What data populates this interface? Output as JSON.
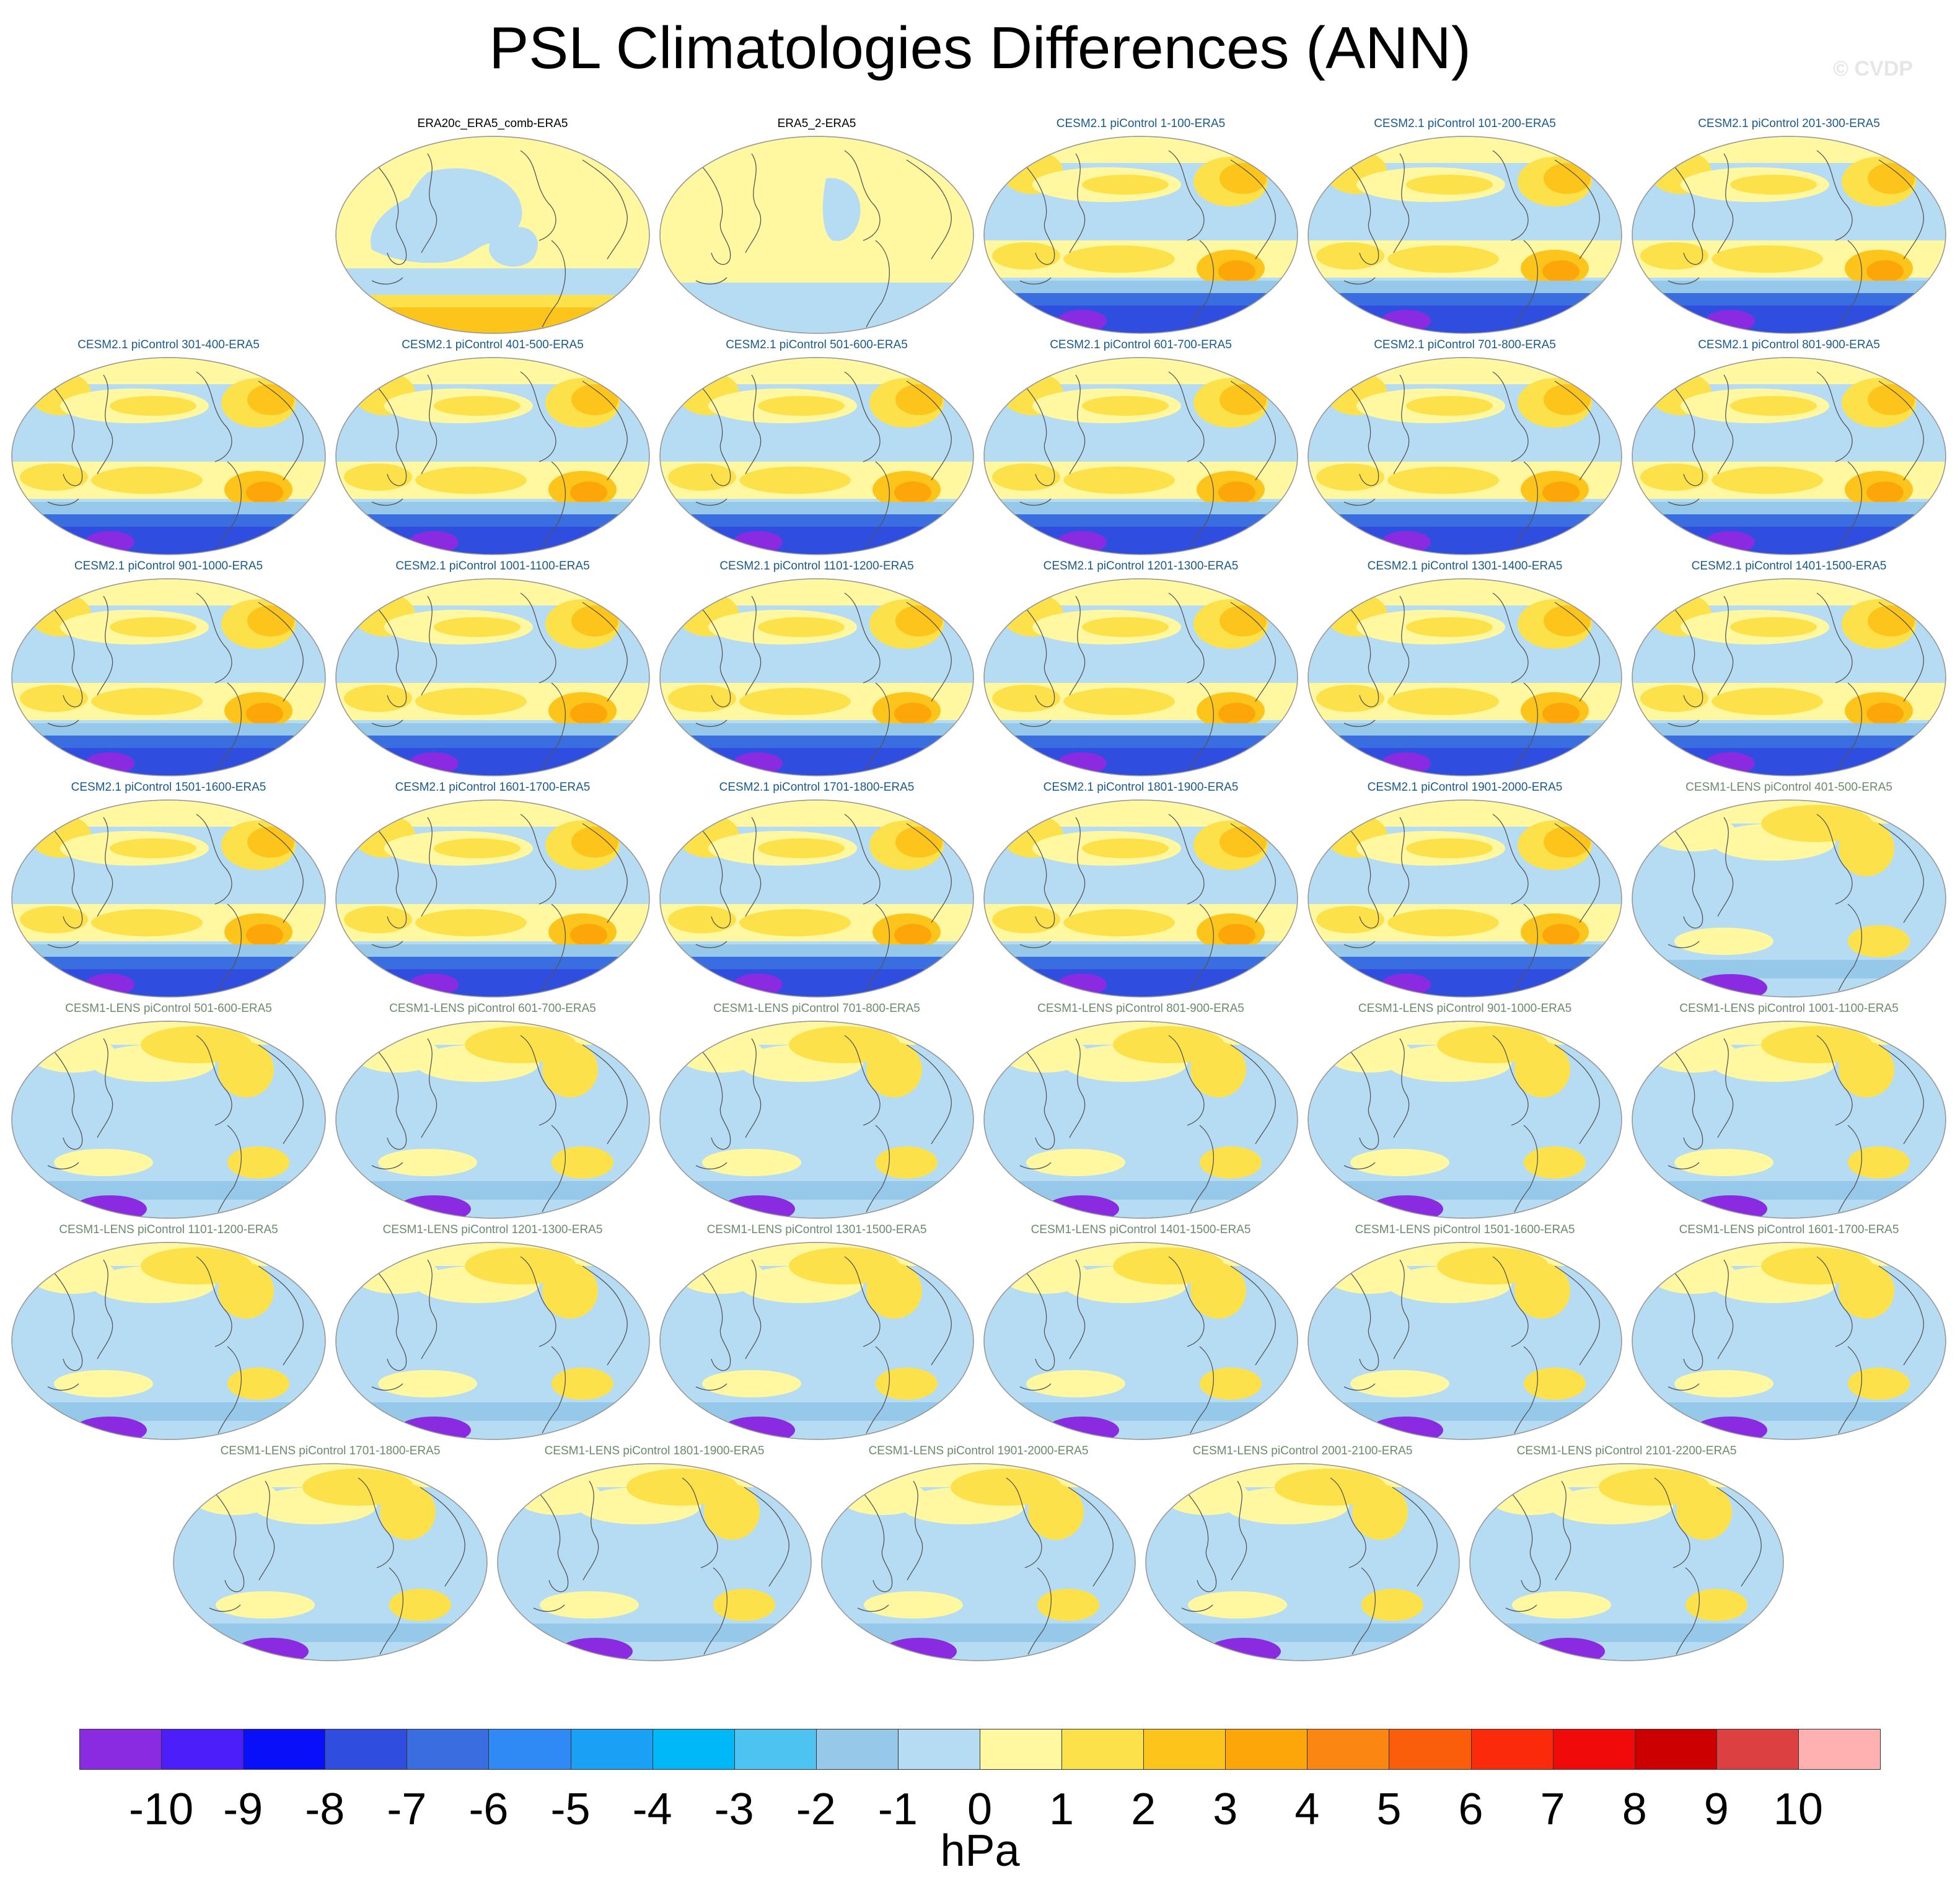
{
  "title": "PSL Climatologies Differences (ANN)",
  "watermark": "© CVDP",
  "chart_data": {
    "type": "heatmap",
    "title": "PSL Climatologies Differences (ANN)",
    "units": "hPa",
    "panels": [
      {
        "label": "ERA20c_ERA5_comb-ERA5",
        "group": "obs"
      },
      {
        "label": "ERA5_2-ERA5",
        "group": "obs"
      },
      {
        "label": "CESM2.1 piControl 1-100-ERA5",
        "group": "cesm2"
      },
      {
        "label": "CESM2.1 piControl 101-200-ERA5",
        "group": "cesm2"
      },
      {
        "label": "CESM2.1 piControl 201-300-ERA5",
        "group": "cesm2"
      },
      {
        "label": "CESM2.1 piControl 301-400-ERA5",
        "group": "cesm2"
      },
      {
        "label": "CESM2.1 piControl 401-500-ERA5",
        "group": "cesm2"
      },
      {
        "label": "CESM2.1 piControl 501-600-ERA5",
        "group": "cesm2"
      },
      {
        "label": "CESM2.1 piControl 601-700-ERA5",
        "group": "cesm2"
      },
      {
        "label": "CESM2.1 piControl 701-800-ERA5",
        "group": "cesm2"
      },
      {
        "label": "CESM2.1 piControl 801-900-ERA5",
        "group": "cesm2"
      },
      {
        "label": "CESM2.1 piControl 901-1000-ERA5",
        "group": "cesm2"
      },
      {
        "label": "CESM2.1 piControl 1001-1100-ERA5",
        "group": "cesm2"
      },
      {
        "label": "CESM2.1 piControl 1101-1200-ERA5",
        "group": "cesm2"
      },
      {
        "label": "CESM2.1 piControl 1201-1300-ERA5",
        "group": "cesm2"
      },
      {
        "label": "CESM2.1 piControl 1301-1400-ERA5",
        "group": "cesm2"
      },
      {
        "label": "CESM2.1 piControl 1401-1500-ERA5",
        "group": "cesm2"
      },
      {
        "label": "CESM2.1 piControl 1501-1600-ERA5",
        "group": "cesm2"
      },
      {
        "label": "CESM2.1 piControl 1601-1700-ERA5",
        "group": "cesm2"
      },
      {
        "label": "CESM2.1 piControl 1701-1800-ERA5",
        "group": "cesm2"
      },
      {
        "label": "CESM2.1 piControl 1801-1900-ERA5",
        "group": "cesm2"
      },
      {
        "label": "CESM2.1 piControl 1901-2000-ERA5",
        "group": "cesm2"
      },
      {
        "label": "CESM1-LENS piControl 401-500-ERA5",
        "group": "cesm1"
      },
      {
        "label": "CESM1-LENS piControl 501-600-ERA5",
        "group": "cesm1"
      },
      {
        "label": "CESM1-LENS piControl 601-700-ERA5",
        "group": "cesm1"
      },
      {
        "label": "CESM1-LENS piControl 701-800-ERA5",
        "group": "cesm1"
      },
      {
        "label": "CESM1-LENS piControl 801-900-ERA5",
        "group": "cesm1"
      },
      {
        "label": "CESM1-LENS piControl 901-1000-ERA5",
        "group": "cesm1"
      },
      {
        "label": "CESM1-LENS piControl 1001-1100-ERA5",
        "group": "cesm1"
      },
      {
        "label": "CESM1-LENS piControl 1101-1200-ERA5",
        "group": "cesm1"
      },
      {
        "label": "CESM1-LENS piControl 1201-1300-ERA5",
        "group": "cesm1"
      },
      {
        "label": "CESM1-LENS piControl 1301-1500-ERA5",
        "group": "cesm1"
      },
      {
        "label": "CESM1-LENS piControl 1401-1500-ERA5",
        "group": "cesm1"
      },
      {
        "label": "CESM1-LENS piControl 1501-1600-ERA5",
        "group": "cesm1"
      },
      {
        "label": "CESM1-LENS piControl 1601-1700-ERA5",
        "group": "cesm1"
      },
      {
        "label": "CESM1-LENS piControl 1701-1800-ERA5",
        "group": "cesm1"
      },
      {
        "label": "CESM1-LENS piControl 1801-1900-ERA5",
        "group": "cesm1"
      },
      {
        "label": "CESM1-LENS piControl 1901-2000-ERA5",
        "group": "cesm1"
      },
      {
        "label": "CESM1-LENS piControl 2001-2100-ERA5",
        "group": "cesm1"
      },
      {
        "label": "CESM1-LENS piControl 2101-2200-ERA5",
        "group": "cesm1"
      }
    ],
    "colorbar": {
      "ticks": [
        "-10",
        "-9",
        "-8",
        "-7",
        "-6",
        "-5",
        "-4",
        "-3",
        "-2",
        "-1",
        "0",
        "1",
        "2",
        "3",
        "4",
        "5",
        "6",
        "7",
        "8",
        "9",
        "10"
      ],
      "colors": [
        "#8a2be2",
        "#4b1efa",
        "#0a0ffa",
        "#2f4ee0",
        "#3a6ddf",
        "#2f8af5",
        "#1aa0f5",
        "#00b8f8",
        "#4cc3f0",
        "#96c8ea",
        "#b6dcf4",
        "#fff8a0",
        "#fde14b",
        "#fdc51c",
        "#fca60a",
        "#fb8612",
        "#fb5e0a",
        "#fa2a0a",
        "#f00a0a",
        "#cc0000",
        "#dd4040",
        "#ffb0b0"
      ],
      "range": [
        -10,
        10
      ]
    }
  },
  "group_colors": {
    "obs": "#000000",
    "cesm2": "#1a5a8a",
    "cesm1": "#6b8a6b"
  },
  "map_colors": {
    "land": "#c8e2f4",
    "ocean_neg": "#b6dcf4",
    "ocean_neg2": "#96c8ea",
    "pos1": "#fff8a0",
    "pos2": "#fde14b",
    "pos3": "#fdc51c",
    "pos4": "#fca60a",
    "neg6": "#3a6ddf",
    "neg8": "#2f4ee0",
    "neg10": "#8a2be2",
    "coast": "#555555"
  }
}
